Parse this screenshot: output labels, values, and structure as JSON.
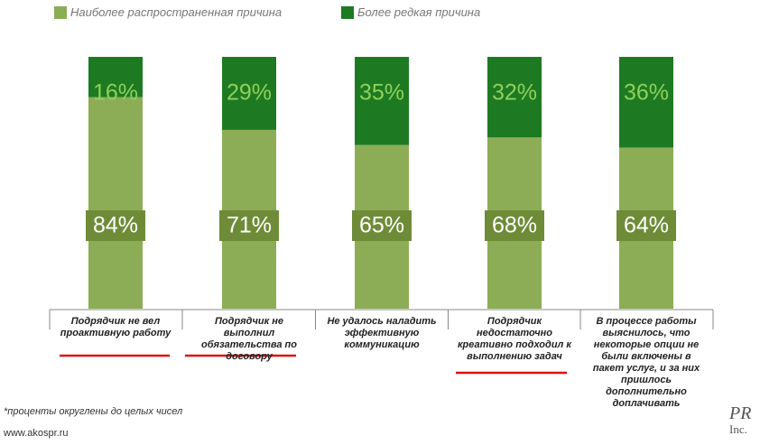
{
  "chart_data": {
    "type": "stacked_bar",
    "categories": [
      "Подрядчик не вел проактивную работу",
      "Подрядчик не выполнил обязательства по договору",
      "Не удалось наладить эффективную коммуникацию",
      "Подрядчик недостаточно креативно подходил к выполнению задач",
      "В процессе работы выяснилось, что некоторые опции не были включены в пакет услуг, и за них пришлось дополнительно доплачивать"
    ],
    "series": [
      {
        "name": "Наиболее распространенная причина",
        "color": "#8cad55",
        "values": [
          84,
          71,
          65,
          68,
          64
        ],
        "value_labels": [
          "84%",
          "71%",
          "65%",
          "68%",
          "64%"
        ]
      },
      {
        "name": "Более редкая причина",
        "color": "#1d7a22",
        "values": [
          16,
          29,
          35,
          32,
          36
        ],
        "value_labels": [
          "16%",
          "29%",
          "35%",
          "32%",
          "36%"
        ]
      }
    ],
    "ylim": [
      0,
      100
    ],
    "footnote": "*проценты округлены до целых чисел",
    "url": "www.akospr.ru",
    "logo": [
      "PR",
      "Inc."
    ]
  }
}
